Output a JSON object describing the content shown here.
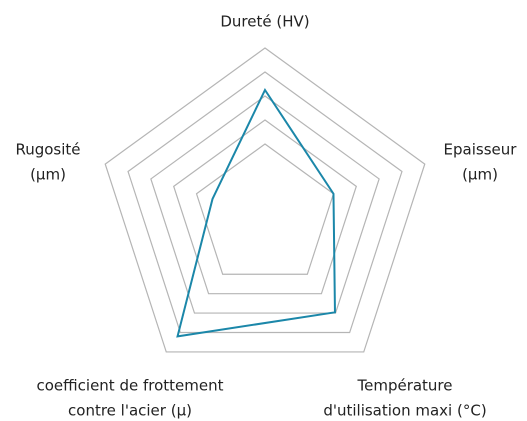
{
  "chart_data": {
    "type": "radar",
    "categories": [
      [
        "Dureté (HV)"
      ],
      [
        "Epaisseur",
        "(µm)"
      ],
      [
        "Température",
        "d'utilisation maxi (°C)"
      ],
      [
        "coefficient de frottement",
        "contre l'acier (µ)"
      ],
      [
        "Rugosité",
        "(µm)"
      ]
    ],
    "series": [
      {
        "color": "#1b87a9",
        "values": [
          5.25,
          3.0,
          4.96,
          6.2,
          2.3
        ]
      }
    ],
    "rlim": [
      0,
      7
    ],
    "rticks": [
      3,
      4,
      5,
      6,
      7
    ],
    "grid": true
  }
}
